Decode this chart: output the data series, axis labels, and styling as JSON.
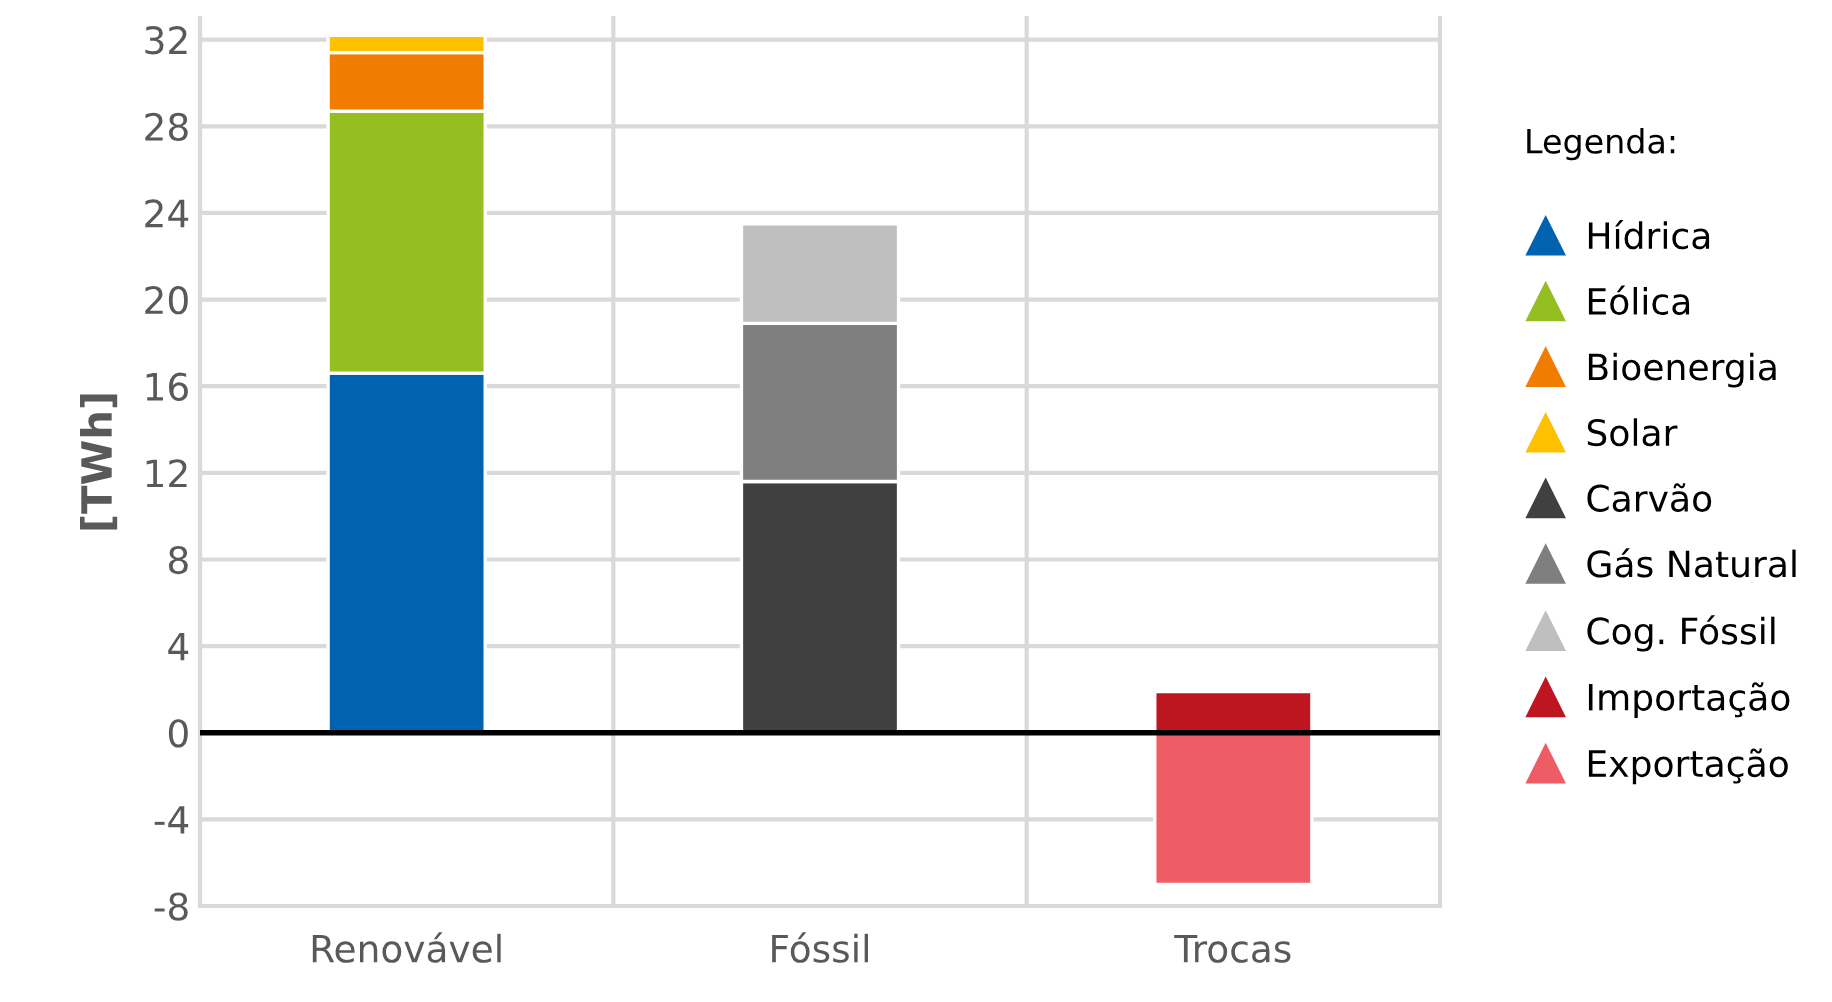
{
  "chart_data": {
    "type": "bar",
    "stacked": true,
    "ylabel": "[TWh]",
    "legend_title": "Legenda:",
    "categories": [
      "Renovável",
      "Fóssil",
      "Trocas"
    ],
    "series": [
      {
        "name": "Hídrica",
        "color": "#0063b1",
        "values": [
          16.6,
          null,
          null
        ]
      },
      {
        "name": "Eólica",
        "color": "#95be20",
        "values": [
          12.1,
          null,
          null
        ]
      },
      {
        "name": "Bioenergia",
        "color": "#f07c00",
        "values": [
          2.7,
          null,
          null
        ]
      },
      {
        "name": "Solar",
        "color": "#ffc000",
        "values": [
          0.8,
          null,
          null
        ]
      },
      {
        "name": "Carvão",
        "color": "#404040",
        "values": [
          null,
          11.6,
          null
        ]
      },
      {
        "name": "Gás Natural",
        "color": "#7f7f7f",
        "values": [
          null,
          7.3,
          null
        ]
      },
      {
        "name": "Cog. Fóssil",
        "color": "#bfbfbf",
        "values": [
          null,
          4.6,
          null
        ]
      },
      {
        "name": "Importação",
        "color": "#be1620",
        "values": [
          null,
          null,
          1.9
        ]
      },
      {
        "name": "Exportação",
        "color": "#ee5c66",
        "values": [
          null,
          null,
          -7.0
        ]
      }
    ],
    "ylim": [
      -8,
      33
    ],
    "yticks": [
      -8,
      -4,
      0,
      4,
      8,
      12,
      16,
      20,
      24,
      28,
      32
    ],
    "grid": true,
    "legend": "right",
    "marker": "triangle",
    "ref_lines": [
      {
        "axis": "y",
        "value": 0,
        "color": "#000000"
      }
    ]
  }
}
